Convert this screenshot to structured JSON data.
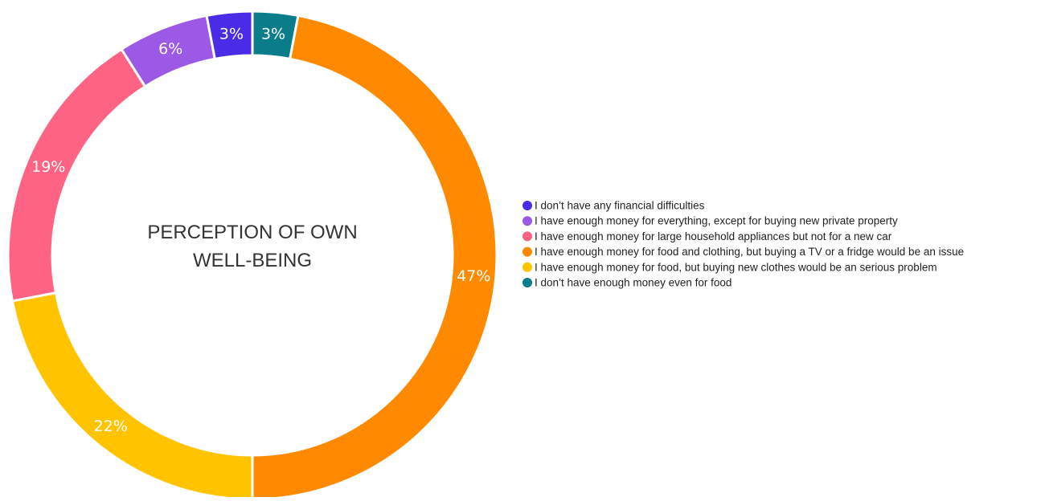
{
  "chart_data": {
    "type": "pie",
    "variant": "donut",
    "center_label": "PERCEPTION OF OWN WELL-BEING",
    "center_label_lines": [
      "PERCEPTION OF OWN",
      "WELL-BEING"
    ],
    "legend_position": "right",
    "slices": [
      {
        "label": "I don’t have enough money even for food",
        "value": 3,
        "display": "3%",
        "color": "#0b7d8a"
      },
      {
        "label": "I have enough money for food and clothing, but buying a TV or a fridge would be an issue",
        "value": 47,
        "display": "47%",
        "color": "#ff8a00"
      },
      {
        "label": "I have enough money for food, but buying new clothes would be an serious problem",
        "value": 22,
        "display": "22%",
        "color": "#ffc300"
      },
      {
        "label": "I have enough money for large household appliances but not for a new car",
        "value": 19,
        "display": "19%",
        "color": "#ff6384"
      },
      {
        "label": "I have enough money for everything, except for buying new private property",
        "value": 6,
        "display": "6%",
        "color": "#9b59e6"
      },
      {
        "label": "I don’t have any financial difficulties",
        "value": 3,
        "display": "3%",
        "color": "#4a2ce6"
      }
    ],
    "legend": [
      {
        "label": "I don’t have any financial difficulties",
        "color": "#4a2ce6"
      },
      {
        "label": "I have enough money for everything, except for buying new private property",
        "color": "#9b59e6"
      },
      {
        "label": "I have enough money for large household appliances but not for a new car",
        "color": "#ff6384"
      },
      {
        "label": "I have enough money for food and clothing, but buying a TV or a fridge would be an issue",
        "color": "#ff8a00"
      },
      {
        "label": "I have enough money for food, but buying new clothes would be an serious problem",
        "color": "#ffc300"
      },
      {
        "label": "I don’t have enough money even for food",
        "color": "#0b7d8a"
      }
    ]
  }
}
